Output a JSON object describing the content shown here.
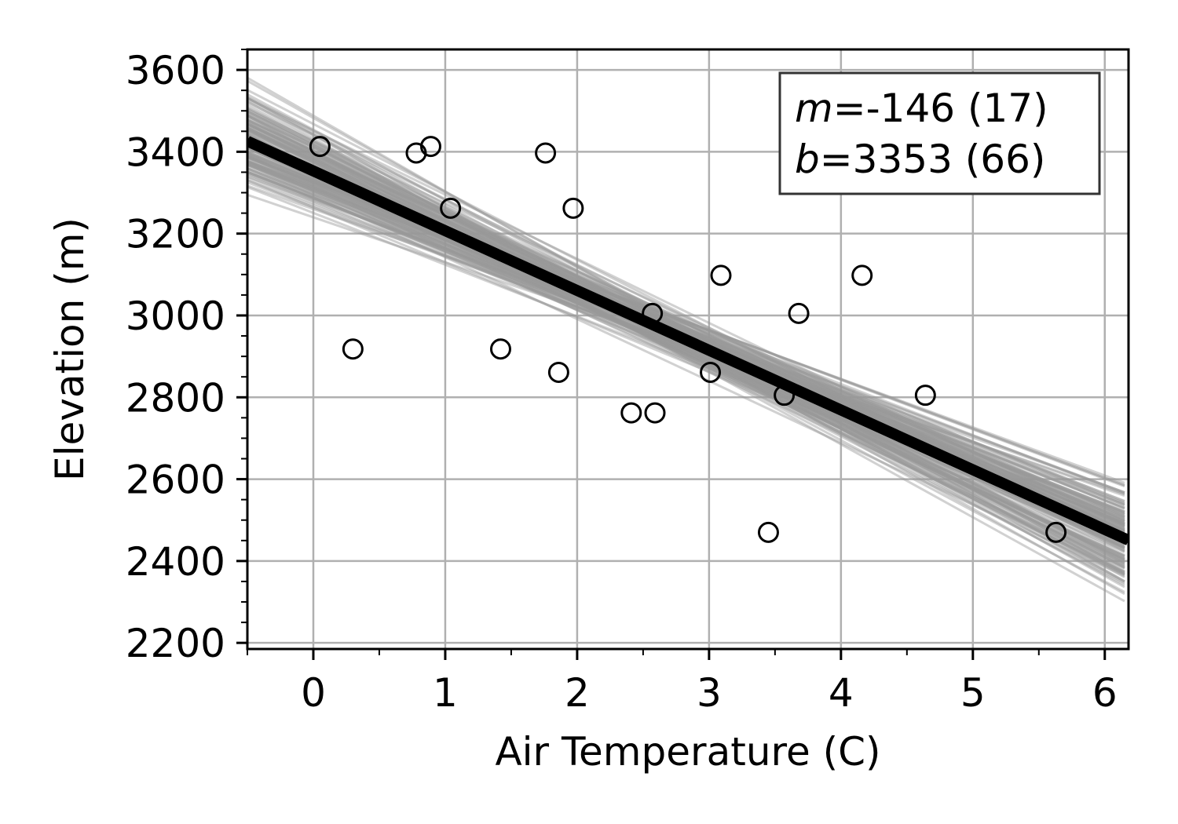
{
  "chart_data": {
    "type": "scatter",
    "xlabel": "Air Temperature (C)",
    "ylabel": "Elevation (m)",
    "xlim": [
      -0.5,
      6.18
    ],
    "ylim": [
      2185,
      3650
    ],
    "x_ticks": [
      0,
      1,
      2,
      3,
      4,
      5,
      6
    ],
    "y_ticks": [
      2200,
      2400,
      2600,
      2800,
      3000,
      3200,
      3400,
      3600
    ],
    "grid": true,
    "points": [
      {
        "x": 0.05,
        "y": 3413
      },
      {
        "x": 0.3,
        "y": 2918
      },
      {
        "x": 0.78,
        "y": 3397
      },
      {
        "x": 0.89,
        "y": 3413
      },
      {
        "x": 1.04,
        "y": 3262
      },
      {
        "x": 1.42,
        "y": 2918
      },
      {
        "x": 1.76,
        "y": 3397
      },
      {
        "x": 1.86,
        "y": 2861
      },
      {
        "x": 1.97,
        "y": 3262
      },
      {
        "x": 2.41,
        "y": 2762
      },
      {
        "x": 2.57,
        "y": 3005
      },
      {
        "x": 2.59,
        "y": 2762
      },
      {
        "x": 3.01,
        "y": 2861
      },
      {
        "x": 3.09,
        "y": 3098
      },
      {
        "x": 3.45,
        "y": 2470
      },
      {
        "x": 3.57,
        "y": 2805
      },
      {
        "x": 3.68,
        "y": 3005
      },
      {
        "x": 4.16,
        "y": 3098
      },
      {
        "x": 4.64,
        "y": 2805
      },
      {
        "x": 5.63,
        "y": 2470
      }
    ],
    "fit_line": {
      "slope": -146,
      "intercept": 3353
    },
    "ensemble": {
      "count": 150,
      "slope_sd": 17,
      "intercept_sd": 66,
      "x_range": [
        -0.5,
        6.15
      ],
      "color": "#999999"
    },
    "annotation": {
      "m_symbol": "m",
      "m_text": "=-146 (17)",
      "b_symbol": "b",
      "b_text": "=3353 (66)",
      "placement": "top-right"
    }
  }
}
